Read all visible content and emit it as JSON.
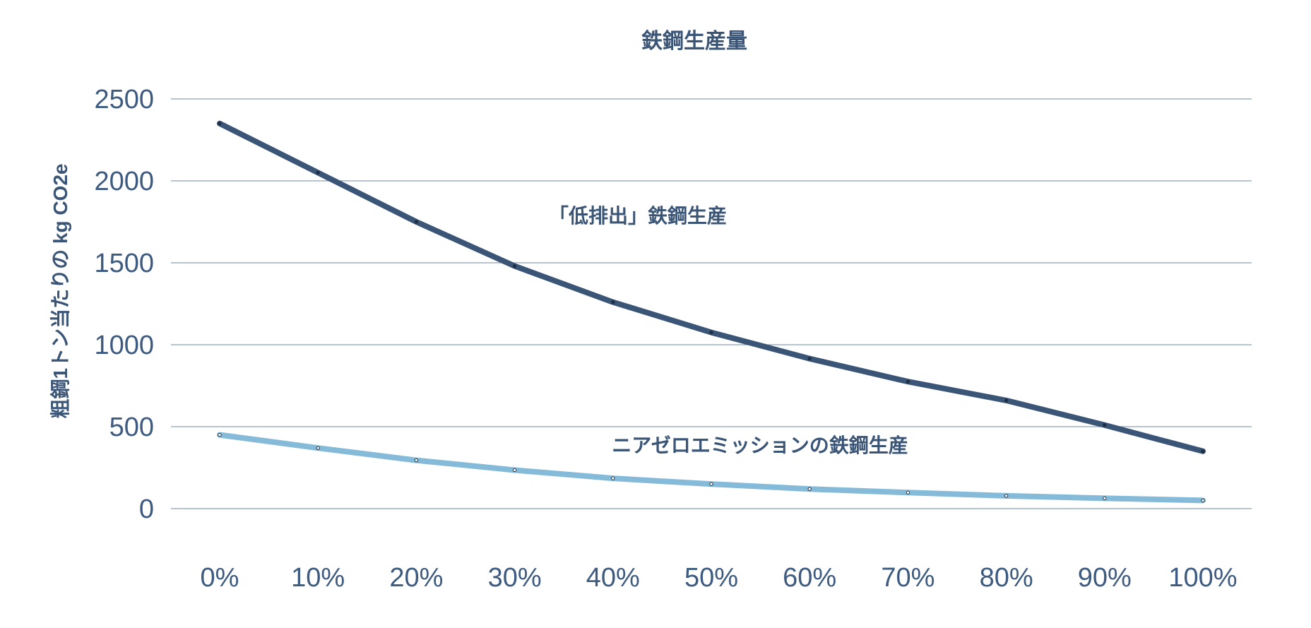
{
  "chart_data": {
    "type": "line",
    "title": "鉄鋼生産量",
    "xlabel": "",
    "ylabel": "粗鋼1トン当たりの kg CO2e",
    "categories": [
      "0%",
      "10%",
      "20%",
      "30%",
      "40%",
      "50%",
      "60%",
      "70%",
      "80%",
      "90%",
      "100%"
    ],
    "ylim": [
      0,
      2500
    ],
    "yticks": [
      0,
      500,
      1000,
      1500,
      2000,
      2500
    ],
    "grid": true,
    "series": [
      {
        "name": "「低排出」鉄鋼生産",
        "color": "#3b5577",
        "values": [
          2350,
          2050,
          1750,
          1480,
          1260,
          1075,
          915,
          775,
          660,
          510,
          350
        ]
      },
      {
        "name": "ニアゼロエミッションの鉄鋼生産",
        "color": "#85bbd8",
        "values": [
          450,
          370,
          295,
          235,
          185,
          150,
          120,
          98,
          78,
          63,
          50
        ]
      }
    ]
  }
}
